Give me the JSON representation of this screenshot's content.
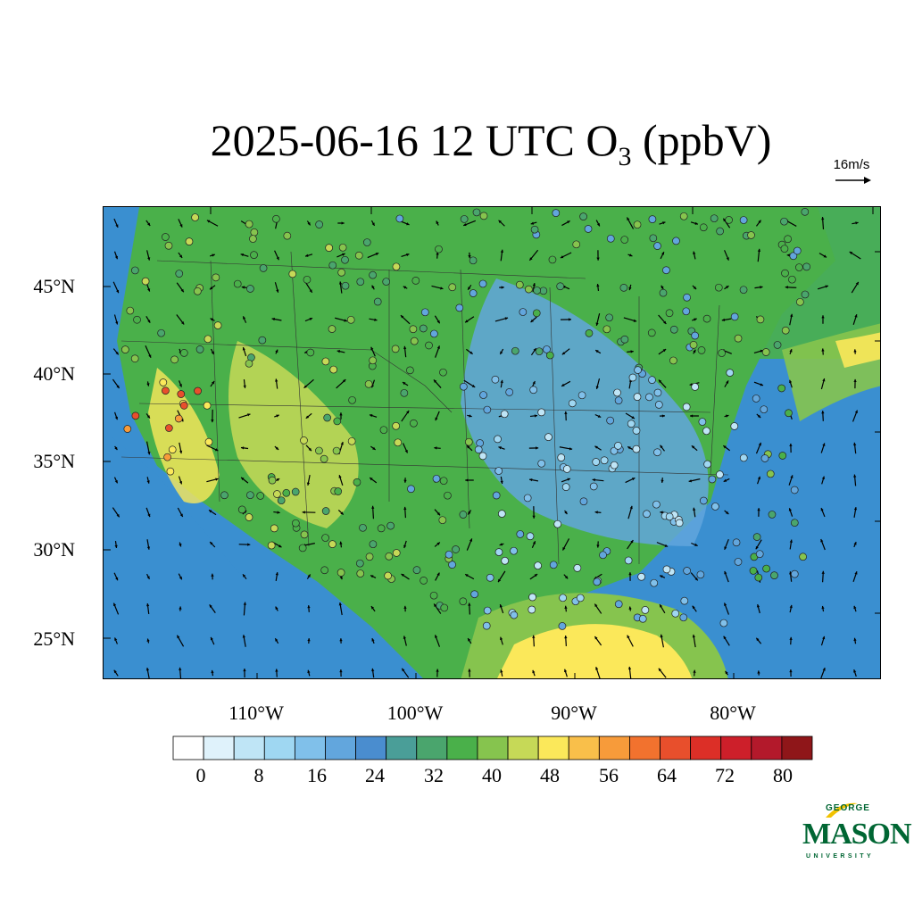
{
  "title": {
    "main": "2025-06-16 12 UTC O",
    "subscript": "3",
    "suffix": " (ppbV)"
  },
  "wind_reference": {
    "label": "16m/s"
  },
  "map": {
    "lat_labels": [
      "45°N",
      "40°N",
      "35°N",
      "30°N",
      "25°N"
    ],
    "lon_labels": [
      "110°W",
      "100°W",
      "90°W",
      "80°W"
    ],
    "land_color": "#4ab04a",
    "ocean_color": "#3a8fd0"
  },
  "colorbar": {
    "labels": [
      "0",
      "8",
      "16",
      "24",
      "32",
      "40",
      "48",
      "56",
      "64",
      "72",
      "80"
    ],
    "colors": [
      "#ffffff",
      "#dff2fb",
      "#bfe5f6",
      "#9fd7f2",
      "#80c0ea",
      "#62a6dd",
      "#4a8dcf",
      "#4a9e98",
      "#4aa56d",
      "#4ab04a",
      "#86c44e",
      "#c6d957",
      "#fbe85a",
      "#f9bf4a",
      "#f79b3a",
      "#f2722e",
      "#e84f2c",
      "#dc2f27",
      "#cd1f2a",
      "#b3192b",
      "#8f1619"
    ]
  },
  "logo": {
    "line1": "GEORGE",
    "line2": "MASON",
    "line3": "UNIVERSITY",
    "color": "#006633",
    "accent": "#f2c200"
  }
}
